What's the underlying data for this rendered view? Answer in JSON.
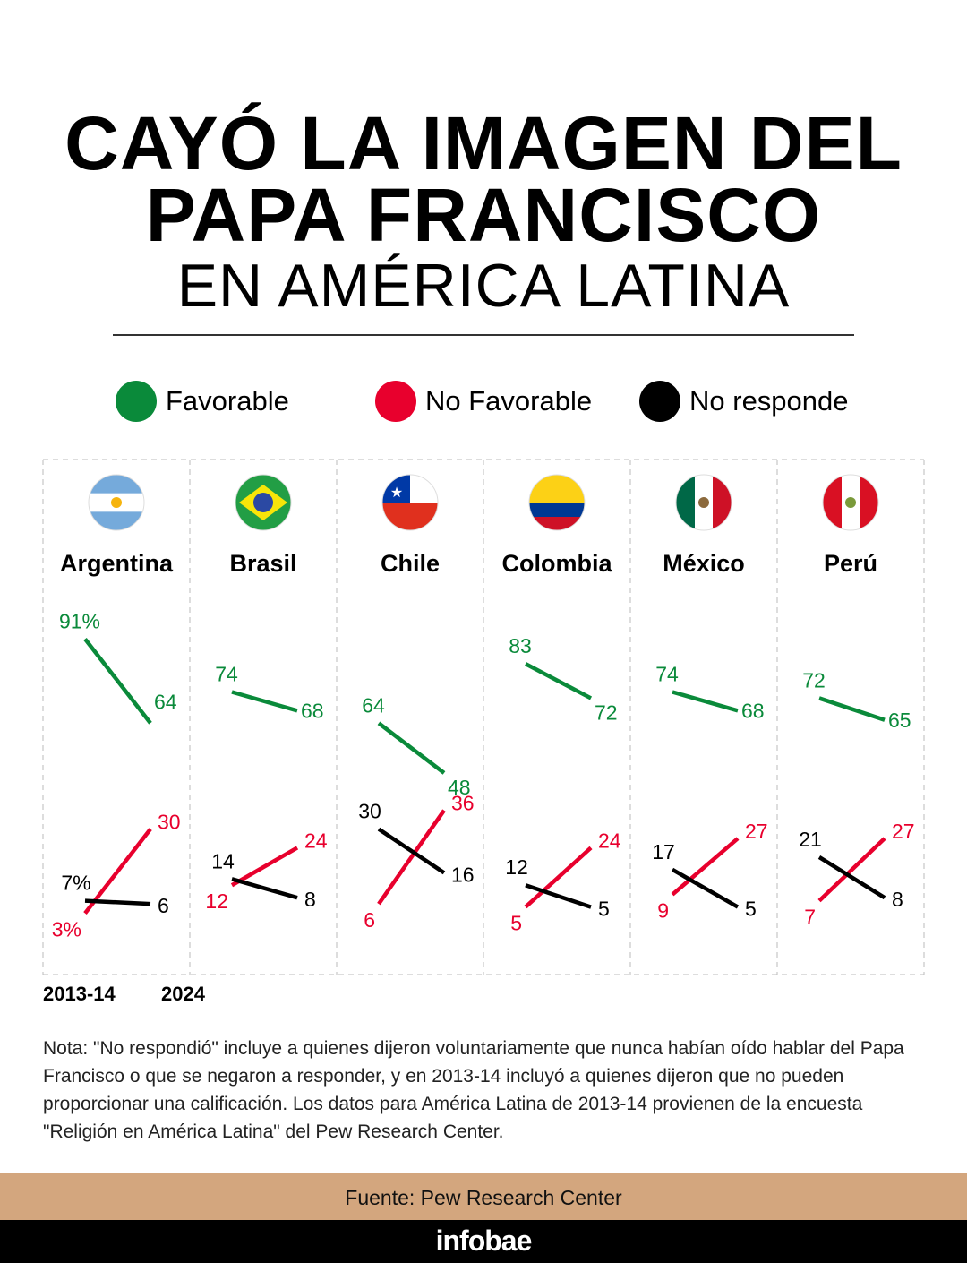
{
  "title": {
    "line1": "CAYÓ LA IMAGEN DEL",
    "line2": "PAPA FRANCISCO",
    "line3": "EN AMÉRICA LATINA"
  },
  "legend": [
    {
      "label": "Favorable",
      "color": "#0a8a3a"
    },
    {
      "label": "No Favorable",
      "color": "#e8002d"
    },
    {
      "label": "No responde",
      "color": "#000000"
    }
  ],
  "years": {
    "start": "2013-14",
    "end": "2024"
  },
  "note": "Nota: \"No respondió\" incluye a quienes dijeron voluntariamente que nunca habían oído hablar del Papa Francisco o que se negaron a responder, y en 2013-14 incluyó a quienes dijeron que no pueden proporcionar una calificación. Los datos para América Latina de 2013-14 provienen de la encuesta \"Religión en América Latina\" del Pew Research Center.",
  "source": "Fuente: Pew Research Center",
  "brand": "infobae",
  "chart_data": {
    "type": "line",
    "x": [
      "2013-14",
      "2024"
    ],
    "unit": "%",
    "panels": [
      {
        "country": "Argentina",
        "flag": "argentina-flag",
        "series": [
          {
            "name": "Favorable",
            "values": [
              91,
              64
            ]
          },
          {
            "name": "No Favorable",
            "values": [
              3,
              30
            ]
          },
          {
            "name": "No responde",
            "values": [
              7,
              6
            ]
          }
        ]
      },
      {
        "country": "Brasil",
        "flag": "brazil-flag",
        "series": [
          {
            "name": "Favorable",
            "values": [
              74,
              68
            ]
          },
          {
            "name": "No Favorable",
            "values": [
              12,
              24
            ]
          },
          {
            "name": "No responde",
            "values": [
              14,
              8
            ]
          }
        ]
      },
      {
        "country": "Chile",
        "flag": "chile-flag",
        "series": [
          {
            "name": "Favorable",
            "values": [
              64,
              48
            ]
          },
          {
            "name": "No Favorable",
            "values": [
              6,
              36
            ]
          },
          {
            "name": "No responde",
            "values": [
              30,
              16
            ]
          }
        ]
      },
      {
        "country": "Colombia",
        "flag": "colombia-flag",
        "series": [
          {
            "name": "Favorable",
            "values": [
              83,
              72
            ]
          },
          {
            "name": "No Favorable",
            "values": [
              5,
              24
            ]
          },
          {
            "name": "No responde",
            "values": [
              12,
              5
            ]
          }
        ]
      },
      {
        "country": "México",
        "flag": "mexico-flag",
        "series": [
          {
            "name": "Favorable",
            "values": [
              74,
              68
            ]
          },
          {
            "name": "No Favorable",
            "values": [
              9,
              27
            ]
          },
          {
            "name": "No responde",
            "values": [
              17,
              5
            ]
          }
        ]
      },
      {
        "country": "Perú",
        "flag": "peru-flag",
        "series": [
          {
            "name": "Favorable",
            "values": [
              72,
              65
            ]
          },
          {
            "name": "No Favorable",
            "values": [
              7,
              27
            ]
          },
          {
            "name": "No responde",
            "values": [
              21,
              8
            ]
          }
        ]
      }
    ]
  }
}
